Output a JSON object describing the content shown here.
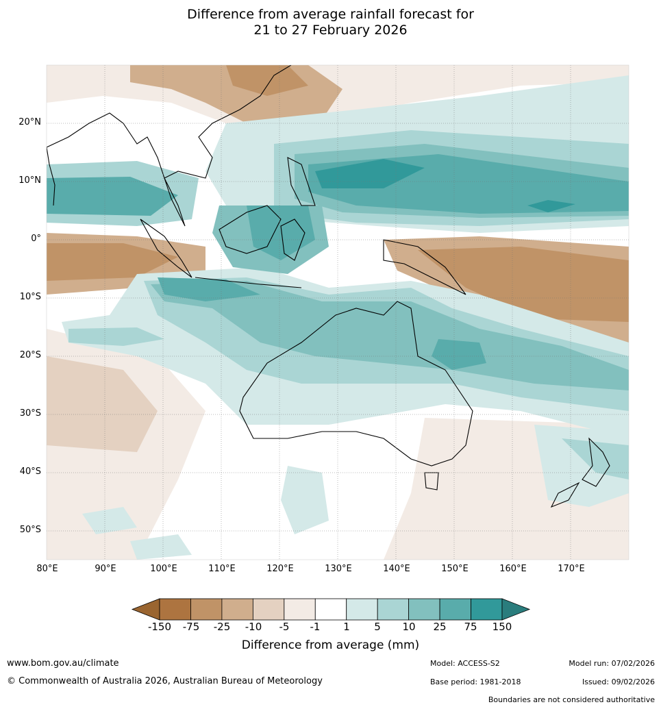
{
  "title": {
    "line1": "Difference from average rainfall forecast for",
    "line2": "21 to 27 February 2026"
  },
  "map": {
    "lat_labels": [
      "20°N",
      "10°N",
      "0°",
      "10°S",
      "20°S",
      "30°S",
      "40°S",
      "50°S"
    ],
    "lon_labels": [
      "80°E",
      "90°E",
      "100°E",
      "110°E",
      "120°E",
      "130°E",
      "140°E",
      "150°E",
      "160°E",
      "170°E"
    ]
  },
  "legend": {
    "title": "Difference from average (mm)",
    "ticks": [
      "-150",
      "-75",
      "-25",
      "-10",
      "-5",
      "-1",
      "1",
      "5",
      "10",
      "25",
      "75",
      "150"
    ],
    "colors": [
      "#9a6530",
      "#ad7440",
      "#c09367",
      "#d0ae8d",
      "#e4d1c1",
      "#f3ebe5",
      "#ffffff",
      "#d4e9e8",
      "#aad5d4",
      "#82c0be",
      "#59acab",
      "#31999a",
      "#2a7d7d"
    ]
  },
  "footer": {
    "url": "www.bom.gov.au/climate",
    "copyright": "© Commonwealth of Australia 2026, Australian Bureau of Meteorology",
    "model": "Model: ACCESS-S2",
    "base_period": "Base period: 1981-2018",
    "model_run": "Model run: 07/02/2026",
    "issued": "Issued: 09/02/2026",
    "disclaimer": "Boundaries are not considered authoritative"
  }
}
